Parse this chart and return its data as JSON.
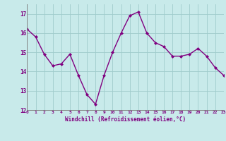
{
  "x": [
    0,
    1,
    2,
    3,
    4,
    5,
    6,
    7,
    8,
    9,
    10,
    11,
    12,
    13,
    14,
    15,
    16,
    17,
    18,
    19,
    20,
    21,
    22,
    23
  ],
  "y": [
    16.2,
    15.8,
    14.9,
    14.3,
    14.4,
    14.9,
    13.8,
    12.8,
    12.3,
    13.8,
    15.0,
    16.0,
    16.9,
    17.1,
    16.0,
    15.5,
    15.3,
    14.8,
    14.8,
    14.9,
    15.2,
    14.8,
    14.2,
    13.8
  ],
  "xlabel": "Windchill (Refroidissement éolien,°C)",
  "xlim": [
    0,
    23
  ],
  "ylim": [
    12,
    17.5
  ],
  "yticks": [
    12,
    13,
    14,
    15,
    16,
    17
  ],
  "xticks": [
    0,
    1,
    2,
    3,
    4,
    5,
    6,
    7,
    8,
    9,
    10,
    11,
    12,
    13,
    14,
    15,
    16,
    17,
    18,
    19,
    20,
    21,
    22,
    23
  ],
  "line_color": "#800080",
  "marker": "D",
  "marker_size": 2.0,
  "bg_color": "#c8eaea",
  "grid_color": "#a0cccc",
  "tick_color": "#800080",
  "xlabel_color": "#800080",
  "line_width": 1.0,
  "spine_color": "#808080"
}
